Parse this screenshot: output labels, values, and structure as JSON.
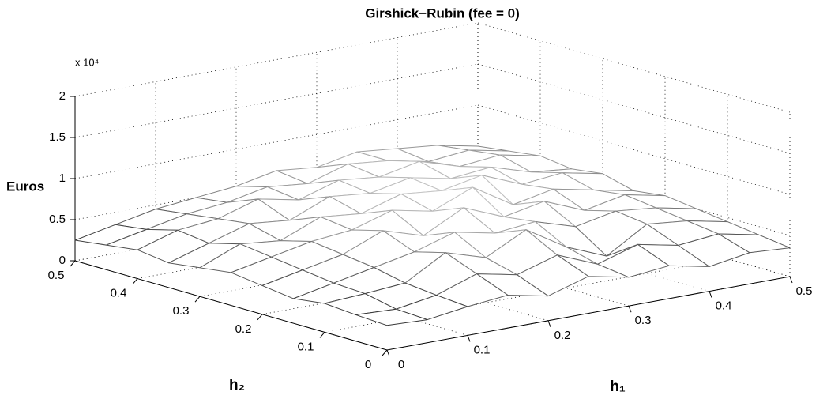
{
  "chart_data": {
    "type": "surface",
    "title": "Girshick−Rubin (fee = 0)",
    "xlabel": "h₁",
    "ylabel": "h₂",
    "zlabel": "Euros",
    "zmultiplier": "x 10⁴",
    "x": [
      0,
      0.05,
      0.1,
      0.15,
      0.2,
      0.25,
      0.3,
      0.35,
      0.4,
      0.45,
      0.5
    ],
    "y": [
      0,
      0.05,
      0.1,
      0.15,
      0.2,
      0.25,
      0.3,
      0.35,
      0.4,
      0.45,
      0.5
    ],
    "z": [
      [
        0.3,
        0.28,
        0.35,
        0.4,
        0.3,
        0.45,
        0.35,
        0.4,
        0.3,
        0.38,
        0.35
      ],
      [
        0.32,
        0.3,
        0.38,
        0.55,
        0.45,
        0.6,
        0.4,
        0.55,
        0.45,
        0.5,
        0.4
      ],
      [
        0.35,
        0.38,
        0.42,
        0.7,
        0.55,
        0.8,
        0.5,
        0.3,
        0.6,
        0.55,
        0.45
      ],
      [
        0.3,
        0.4,
        0.5,
        0.6,
        0.75,
        0.65,
        0.7,
        0.55,
        0.65,
        0.6,
        0.5
      ],
      [
        0.35,
        0.45,
        0.55,
        0.75,
        0.6,
        0.85,
        0.65,
        0.75,
        0.55,
        0.65,
        0.55
      ],
      [
        0.4,
        0.5,
        0.6,
        0.65,
        0.8,
        0.7,
        0.9,
        0.6,
        0.7,
        0.6,
        0.5
      ],
      [
        0.35,
        0.55,
        0.5,
        0.7,
        0.65,
        0.8,
        0.75,
        0.85,
        0.65,
        0.7,
        0.6
      ],
      [
        0.3,
        0.45,
        0.6,
        0.55,
        0.75,
        0.7,
        0.8,
        0.7,
        0.75,
        0.6,
        0.55
      ],
      [
        0.35,
        0.5,
        0.55,
        0.7,
        0.6,
        0.75,
        0.7,
        0.8,
        0.65,
        0.7,
        0.6
      ],
      [
        0.3,
        0.4,
        0.5,
        0.55,
        0.65,
        0.6,
        0.75,
        0.7,
        0.6,
        0.65,
        0.55
      ],
      [
        0.25,
        0.35,
        0.45,
        0.5,
        0.55,
        0.65,
        0.6,
        0.7,
        0.65,
        0.6,
        0.5
      ]
    ],
    "xlim": [
      0,
      0.5
    ],
    "ylim": [
      0,
      0.5
    ],
    "zlim": [
      0,
      2
    ],
    "xticks": [
      0,
      0.1,
      0.2,
      0.3,
      0.4,
      0.5
    ],
    "yticks": [
      0,
      0.1,
      0.2,
      0.3,
      0.4,
      0.5
    ],
    "zticks": [
      0,
      0.5,
      1,
      1.5,
      2
    ],
    "grid": true,
    "colormap": "gray"
  }
}
